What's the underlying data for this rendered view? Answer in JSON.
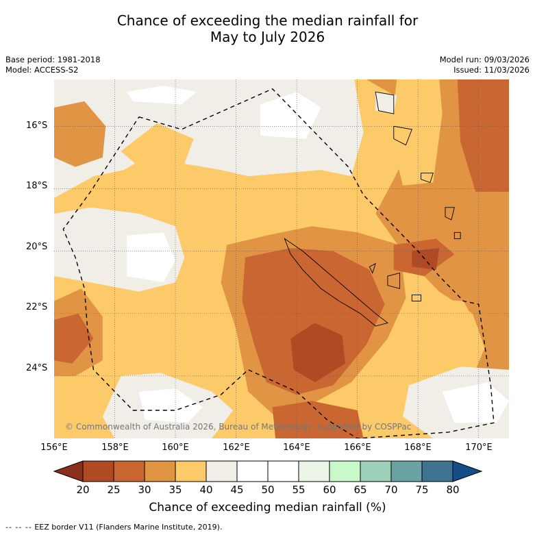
{
  "title_line1": "Chance of exceeding the median rainfall for",
  "title_line2": "May to July 2026",
  "base_period": "Base period: 1981-2018",
  "model": "Model: ACCESS-S2",
  "model_run": "Model run: 09/03/2026",
  "issued": "Issued: 11/03/2026",
  "copyright": "© Commonwealth of Australia 2026, Bureau of Meteorology, supported by COSPPac",
  "lat_labels": [
    "16°S",
    "18°S",
    "20°S",
    "22°S",
    "24°S"
  ],
  "lon_labels": [
    "156°E",
    "158°E",
    "160°E",
    "162°E",
    "164°E",
    "166°E",
    "168°E",
    "170°E"
  ],
  "colorbar": {
    "ticks": [
      "20",
      "25",
      "30",
      "35",
      "40",
      "45",
      "50",
      "55",
      "60",
      "65",
      "70",
      "75",
      "80"
    ],
    "colors": [
      "#8b2e1c",
      "#b04a25",
      "#c96632",
      "#e09444",
      "#fdca69",
      "#f1ede7",
      "#ffffff",
      "#ffffff",
      "#eaf5e6",
      "#c8f9c8",
      "#9dd0b9",
      "#6aa3a3",
      "#3e7392",
      "#154d86"
    ],
    "title": "Chance of exceeding median rainfall (%)"
  },
  "footnote_dashes": "--  --  --",
  "footnote_text": "EEZ border V11 (Flanders Marine Institute, 2019).",
  "map_data": {
    "lon_range": [
      156,
      171
    ],
    "lat_range": [
      -26,
      -14.5
    ],
    "eez_border": [
      [
        158.8,
        -15.7
      ],
      [
        160.2,
        -16.1
      ],
      [
        163.2,
        -14.8
      ],
      [
        164.6,
        -16.2
      ],
      [
        165.7,
        -17.3
      ],
      [
        166.2,
        -18.2
      ],
      [
        167.0,
        -19.0
      ],
      [
        168.0,
        -20.0
      ],
      [
        168.7,
        -20.8
      ],
      [
        169.5,
        -21.6
      ],
      [
        170.0,
        -21.7
      ],
      [
        170.4,
        -24.3
      ],
      [
        170.5,
        -25.5
      ],
      [
        169.0,
        -25.8
      ],
      [
        166.0,
        -26.0
      ],
      [
        165.0,
        -25.4
      ],
      [
        164.0,
        -24.5
      ],
      [
        162.4,
        -23.8
      ],
      [
        161.5,
        -24.6
      ],
      [
        160.0,
        -25.1
      ],
      [
        158.6,
        -25.1
      ],
      [
        157.3,
        -23.8
      ],
      [
        157.1,
        -22.5
      ],
      [
        157.0,
        -21.2
      ],
      [
        156.7,
        -20.2
      ],
      [
        156.3,
        -19.3
      ],
      [
        157.2,
        -18.1
      ],
      [
        158.8,
        -15.7
      ]
    ],
    "regions": [
      {
        "percent": "35-40",
        "points": [
          [
            156,
            -14.5
          ],
          [
            171,
            -14.5
          ],
          [
            171,
            -26
          ],
          [
            156,
            -26
          ]
        ]
      },
      {
        "percent": "40-45",
        "points": [
          [
            156,
            -18.3
          ],
          [
            157.3,
            -17.6
          ],
          [
            158.3,
            -17.4
          ],
          [
            159.0,
            -17.0
          ],
          [
            160.3,
            -17.2
          ],
          [
            161.5,
            -17.4
          ],
          [
            162.4,
            -17.6
          ],
          [
            163.6,
            -17.5
          ],
          [
            164.8,
            -17.4
          ],
          [
            165.8,
            -17.6
          ],
          [
            166.2,
            -16.2
          ],
          [
            165.9,
            -14.5
          ],
          [
            156,
            -14.5
          ]
        ]
      },
      {
        "percent": "30-35",
        "points": [
          [
            156,
            -15.4
          ],
          [
            157.0,
            -15.2
          ],
          [
            157.7,
            -16.0
          ],
          [
            157.6,
            -17.0
          ],
          [
            156.7,
            -17.3
          ],
          [
            156,
            -17.0
          ]
        ]
      },
      {
        "percent": "35-40",
        "points": [
          [
            158.2,
            -16.8
          ],
          [
            159.4,
            -15.9
          ],
          [
            160.6,
            -16.4
          ],
          [
            160.3,
            -17.2
          ],
          [
            158.8,
            -17.3
          ]
        ]
      },
      {
        "percent": "45-50",
        "points": [
          [
            158.4,
            -14.9
          ],
          [
            159.6,
            -14.7
          ],
          [
            160.7,
            -14.9
          ],
          [
            160.2,
            -15.3
          ],
          [
            158.6,
            -15.2
          ]
        ]
      },
      {
        "percent": "45-50",
        "points": [
          [
            162.8,
            -15.3
          ],
          [
            164.0,
            -14.9
          ],
          [
            164.8,
            -15.4
          ],
          [
            164.3,
            -16.4
          ],
          [
            162.8,
            -16.3
          ]
        ]
      },
      {
        "percent": "40-45",
        "points": [
          [
            156,
            -18.8
          ],
          [
            157.2,
            -18.6
          ],
          [
            158.8,
            -18.8
          ],
          [
            160.0,
            -19.2
          ],
          [
            160.3,
            -20.2
          ],
          [
            160.0,
            -21.0
          ],
          [
            158.8,
            -21.3
          ],
          [
            157.2,
            -21.0
          ],
          [
            156,
            -20.8
          ]
        ]
      },
      {
        "percent": "45-50",
        "points": [
          [
            158.4,
            -19.5
          ],
          [
            159.6,
            -19.4
          ],
          [
            160.0,
            -20.3
          ],
          [
            159.6,
            -21.0
          ],
          [
            158.4,
            -20.8
          ]
        ]
      },
      {
        "percent": "30-35",
        "points": [
          [
            166.3,
            -14.5
          ],
          [
            171,
            -14.5
          ],
          [
            171,
            -26
          ],
          [
            170.3,
            -25.6
          ],
          [
            169.6,
            -24.5
          ],
          [
            170.2,
            -23.1
          ],
          [
            169.8,
            -22.0
          ],
          [
            168.7,
            -21.3
          ],
          [
            167.7,
            -20.3
          ],
          [
            166.6,
            -18.8
          ],
          [
            167.2,
            -17.7
          ],
          [
            167.9,
            -16.3
          ],
          [
            167.2,
            -15.0
          ]
        ]
      },
      {
        "percent": "35-40",
        "points": [
          [
            167.3,
            -14.5
          ],
          [
            168.7,
            -14.5
          ],
          [
            168.8,
            -15.6
          ],
          [
            168.5,
            -17.8
          ],
          [
            167.5,
            -17.9
          ],
          [
            167.1,
            -16.3
          ]
        ]
      },
      {
        "percent": "25-30",
        "points": [
          [
            169.3,
            -14.5
          ],
          [
            171,
            -14.5
          ],
          [
            171,
            -18.1
          ],
          [
            169.9,
            -18.1
          ],
          [
            169.4,
            -16.5
          ]
        ]
      },
      {
        "percent": "40-45",
        "points": [
          [
            166.6,
            -14.9
          ],
          [
            167.3,
            -15.0
          ],
          [
            167.2,
            -15.6
          ],
          [
            166.6,
            -15.5
          ]
        ]
      },
      {
        "percent": "35-40",
        "points": [
          [
            168.0,
            -21.5
          ],
          [
            169.5,
            -21.6
          ],
          [
            170.0,
            -22.5
          ],
          [
            169.4,
            -23.8
          ],
          [
            168.2,
            -23.5
          ]
        ]
      },
      {
        "percent": "40-45",
        "points": [
          [
            167.7,
            -24.3
          ],
          [
            169.4,
            -23.7
          ],
          [
            171,
            -23.8
          ],
          [
            171,
            -26
          ],
          [
            168.5,
            -26
          ],
          [
            167.5,
            -25.3
          ]
        ]
      },
      {
        "percent": "45-50",
        "points": [
          [
            168.8,
            -24.5
          ],
          [
            170.3,
            -24.2
          ],
          [
            171,
            -24.8
          ],
          [
            170.6,
            -25.5
          ],
          [
            169.2,
            -25.5
          ]
        ]
      },
      {
        "percent": "30-35",
        "points": [
          [
            162.0,
            -22.5
          ],
          [
            161.5,
            -21.0
          ],
          [
            161.7,
            -19.8
          ],
          [
            163.0,
            -19.5
          ],
          [
            164.5,
            -19.2
          ],
          [
            166.0,
            -19.4
          ],
          [
            167.4,
            -19.8
          ],
          [
            167.6,
            -21.5
          ],
          [
            167.0,
            -22.8
          ],
          [
            165.8,
            -24.2
          ],
          [
            164.5,
            -24.9
          ],
          [
            163.3,
            -25.3
          ],
          [
            162.4,
            -24.5
          ]
        ]
      },
      {
        "percent": "25-30",
        "points": [
          [
            162.2,
            -21.6
          ],
          [
            162.3,
            -20.2
          ],
          [
            163.8,
            -19.9
          ],
          [
            165.2,
            -20.0
          ],
          [
            166.4,
            -20.6
          ],
          [
            166.9,
            -21.7
          ],
          [
            166.3,
            -23.0
          ],
          [
            165.2,
            -24.3
          ],
          [
            164.0,
            -24.6
          ],
          [
            163.0,
            -24.2
          ],
          [
            162.6,
            -23.0
          ]
        ]
      },
      {
        "percent": "20-25",
        "points": [
          [
            163.8,
            -22.8
          ],
          [
            164.6,
            -22.3
          ],
          [
            165.5,
            -22.7
          ],
          [
            165.6,
            -23.6
          ],
          [
            164.6,
            -24.2
          ],
          [
            163.9,
            -23.8
          ]
        ]
      },
      {
        "percent": "25-30",
        "points": [
          [
            167.2,
            -19.8
          ],
          [
            168.6,
            -19.6
          ],
          [
            169.2,
            -20.1
          ],
          [
            168.2,
            -20.8
          ],
          [
            167.2,
            -20.6
          ]
        ]
      },
      {
        "percent": "20-25",
        "points": [
          [
            167.8,
            -20.0
          ],
          [
            168.7,
            -19.9
          ],
          [
            168.6,
            -20.6
          ],
          [
            167.8,
            -20.5
          ]
        ]
      },
      {
        "percent": "25-30",
        "points": [
          [
            163.2,
            -25.0
          ],
          [
            164.5,
            -24.8
          ],
          [
            166.0,
            -25.1
          ],
          [
            166.2,
            -26.0
          ],
          [
            163.3,
            -26.0
          ]
        ]
      },
      {
        "percent": "30-35",
        "points": [
          [
            156,
            -21.6
          ],
          [
            156.9,
            -21.2
          ],
          [
            157.6,
            -22.1
          ],
          [
            157.6,
            -23.5
          ],
          [
            156.7,
            -24.0
          ],
          [
            156,
            -24.0
          ]
        ]
      },
      {
        "percent": "25-30",
        "points": [
          [
            156,
            -22.2
          ],
          [
            156.8,
            -22.0
          ],
          [
            157.3,
            -22.8
          ],
          [
            156.6,
            -23.6
          ],
          [
            156,
            -23.5
          ]
        ]
      },
      {
        "percent": "40-45",
        "points": [
          [
            158.2,
            -24.0
          ],
          [
            159.5,
            -23.9
          ],
          [
            161.2,
            -24.5
          ],
          [
            161.9,
            -25.1
          ],
          [
            161.2,
            -26.0
          ],
          [
            158.0,
            -26.0
          ],
          [
            157.6,
            -25.3
          ]
        ]
      },
      {
        "percent": "45-50",
        "points": [
          [
            158.8,
            -24.5
          ],
          [
            160.0,
            -24.4
          ],
          [
            160.9,
            -25.0
          ],
          [
            160.4,
            -25.5
          ],
          [
            159.0,
            -25.4
          ]
        ]
      }
    ],
    "coastlines": [
      {
        "name": "New Caledonia",
        "points": [
          [
            163.6,
            -19.6
          ],
          [
            164.2,
            -20.0
          ],
          [
            164.8,
            -20.5
          ],
          [
            165.4,
            -21.0
          ],
          [
            166.0,
            -21.5
          ],
          [
            166.6,
            -22.0
          ],
          [
            167.0,
            -22.3
          ],
          [
            166.6,
            -22.4
          ],
          [
            166.1,
            -22.0
          ],
          [
            165.4,
            -21.6
          ],
          [
            164.8,
            -21.2
          ],
          [
            164.2,
            -20.6
          ],
          [
            163.8,
            -20.1
          ]
        ]
      },
      {
        "name": "Lifou",
        "points": [
          [
            167.0,
            -20.8
          ],
          [
            167.4,
            -20.7
          ],
          [
            167.4,
            -21.2
          ],
          [
            167.0,
            -21.1
          ]
        ]
      },
      {
        "name": "Mare",
        "points": [
          [
            167.8,
            -21.4
          ],
          [
            168.1,
            -21.4
          ],
          [
            168.1,
            -21.6
          ],
          [
            167.8,
            -21.6
          ]
        ]
      },
      {
        "name": "Ouvea",
        "points": [
          [
            166.4,
            -20.5
          ],
          [
            166.6,
            -20.4
          ],
          [
            166.5,
            -20.7
          ]
        ]
      },
      {
        "name": "Espiritu Santo",
        "points": [
          [
            166.6,
            -14.9
          ],
          [
            167.2,
            -15.0
          ],
          [
            167.2,
            -15.6
          ],
          [
            166.7,
            -15.5
          ]
        ]
      },
      {
        "name": "Malakula",
        "points": [
          [
            167.2,
            -16.0
          ],
          [
            167.8,
            -16.1
          ],
          [
            167.6,
            -16.6
          ],
          [
            167.2,
            -16.4
          ]
        ]
      },
      {
        "name": "Efate",
        "points": [
          [
            168.1,
            -17.5
          ],
          [
            168.5,
            -17.5
          ],
          [
            168.4,
            -17.8
          ],
          [
            168.1,
            -17.7
          ]
        ]
      },
      {
        "name": "Erromango",
        "points": [
          [
            168.9,
            -18.6
          ],
          [
            169.2,
            -18.6
          ],
          [
            169.1,
            -19.0
          ],
          [
            168.9,
            -18.9
          ]
        ]
      },
      {
        "name": "Tanna",
        "points": [
          [
            169.2,
            -19.4
          ],
          [
            169.4,
            -19.4
          ],
          [
            169.4,
            -19.6
          ],
          [
            169.2,
            -19.6
          ]
        ]
      }
    ]
  }
}
